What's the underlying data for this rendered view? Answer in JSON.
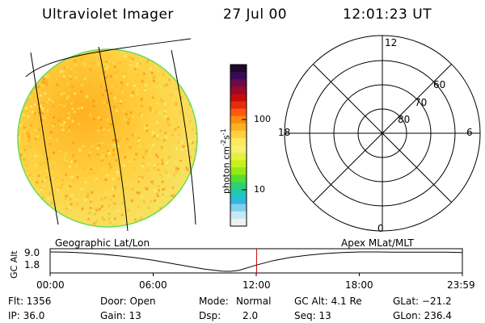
{
  "header": {
    "instrument": "Ultraviolet Imager",
    "date": "27 Jul 00",
    "time": "12:01:23 UT"
  },
  "colorbar": {
    "unit_label": "photon cm",
    "unit_exp1": "-2",
    "unit_s": "s",
    "unit_exp2": "-1",
    "tick_high": "100",
    "tick_low": "10",
    "colors": [
      "#1a0a30",
      "#3a0a55",
      "#6a0a4a",
      "#9a0a2a",
      "#c80a0a",
      "#e82a10",
      "#ff5a10",
      "#ff8c10",
      "#ffb020",
      "#ffd040",
      "#ffe860",
      "#f8f070",
      "#e6f040",
      "#c8f020",
      "#98ea10",
      "#58dc30",
      "#30d070",
      "#20c8b0",
      "#30b8e0",
      "#80d0f0",
      "#c8e8f8",
      "#f0f0f0"
    ]
  },
  "polar": {
    "labels": {
      "top": "12",
      "left": "18",
      "right": "6",
      "bottom": "0"
    },
    "rings": [
      "60",
      "70",
      "80"
    ]
  },
  "timeline": {
    "left_label": "Geographic Lat/Lon",
    "right_label": "Apex MLat/MLT",
    "y_axis": "GC Alt",
    "y_top": "9.0",
    "y_bottom": "1.8",
    "ticks": [
      "00:00",
      "06:00",
      "12:00",
      "18:00",
      "23:59"
    ],
    "alt_curve": [
      [
        0,
        9.0
      ],
      [
        1,
        8.9
      ],
      [
        2,
        8.6
      ],
      [
        3,
        8.2
      ],
      [
        4,
        7.6
      ],
      [
        5,
        6.8
      ],
      [
        6,
        5.9
      ],
      [
        7,
        4.8
      ],
      [
        8,
        3.7
      ],
      [
        9,
        2.6
      ],
      [
        10,
        1.9
      ],
      [
        10.5,
        1.8
      ],
      [
        11,
        2.2
      ],
      [
        12,
        4.1
      ],
      [
        13,
        5.8
      ],
      [
        14,
        7.0
      ],
      [
        15,
        7.8
      ],
      [
        16,
        8.4
      ],
      [
        17,
        8.8
      ],
      [
        18,
        9.0
      ],
      [
        19,
        9.0
      ],
      [
        20,
        8.9
      ],
      [
        21,
        8.9
      ],
      [
        22,
        8.9
      ],
      [
        23,
        8.9
      ],
      [
        23.98,
        8.8
      ]
    ],
    "marker_time": 12.02
  },
  "footer": {
    "flt": "Flt: 1356",
    "ip": "IP: 36.0",
    "door": "Door: Open",
    "gain": "Gain: 13",
    "mode_label": "Mode:",
    "mode_value": "Normal",
    "dsp_label": "Dsp:",
    "dsp_value": "2.0",
    "gcalt": "GC Alt: 4.1 Re",
    "seq": "Seq: 13",
    "glat": "GLat: −21.2",
    "glon": "GLon: 236.4"
  }
}
